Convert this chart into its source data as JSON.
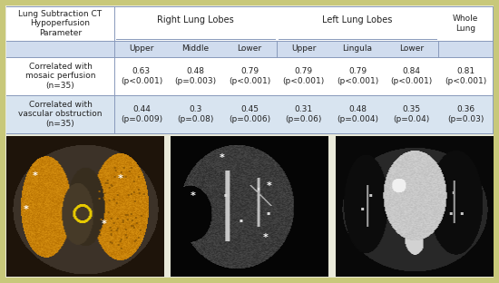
{
  "outer_border_color": "#c8c87a",
  "outer_bg_color": "#eaeada",
  "table_bg_color": "#ffffff",
  "header_bg_color": "#d0dcee",
  "row1_bg_color": "#ffffff",
  "row2_bg_color": "#d8e4f0",
  "border_color": "#8899bb",
  "text_color": "#222222",
  "header_text_color": "#222222",
  "row1_label": "Correlated with\nmosaic perfusion\n(n=35)",
  "row1_values": [
    "0.63\n(p<0.001)",
    "0.48\n(p=0.003)",
    "0.79\n(p<0.001)",
    "0.79\n(p<0.001)",
    "0.79\n(p<0.001)",
    "0.84\n(p<0.001)",
    "0.81\n(p<0.001)"
  ],
  "row2_label": "Correlated with\nvascular obstruction\n(n=35)",
  "row2_values": [
    "0.44\n(p=0.009)",
    "0.3\n(p=0.08)",
    "0.45\n(p=0.006)",
    "0.31\n(p=0.06)",
    "0.48\n(p=0.004)",
    "0.35\n(p=0.04)",
    "0.36\n(p=0.03)"
  ],
  "col_widths": [
    1.7,
    0.85,
    0.85,
    0.85,
    0.85,
    0.85,
    0.85,
    0.85
  ],
  "sub_labels": [
    "",
    "Upper",
    "Middle",
    "Lower",
    "Upper",
    "Lingula",
    "Lower",
    ""
  ]
}
